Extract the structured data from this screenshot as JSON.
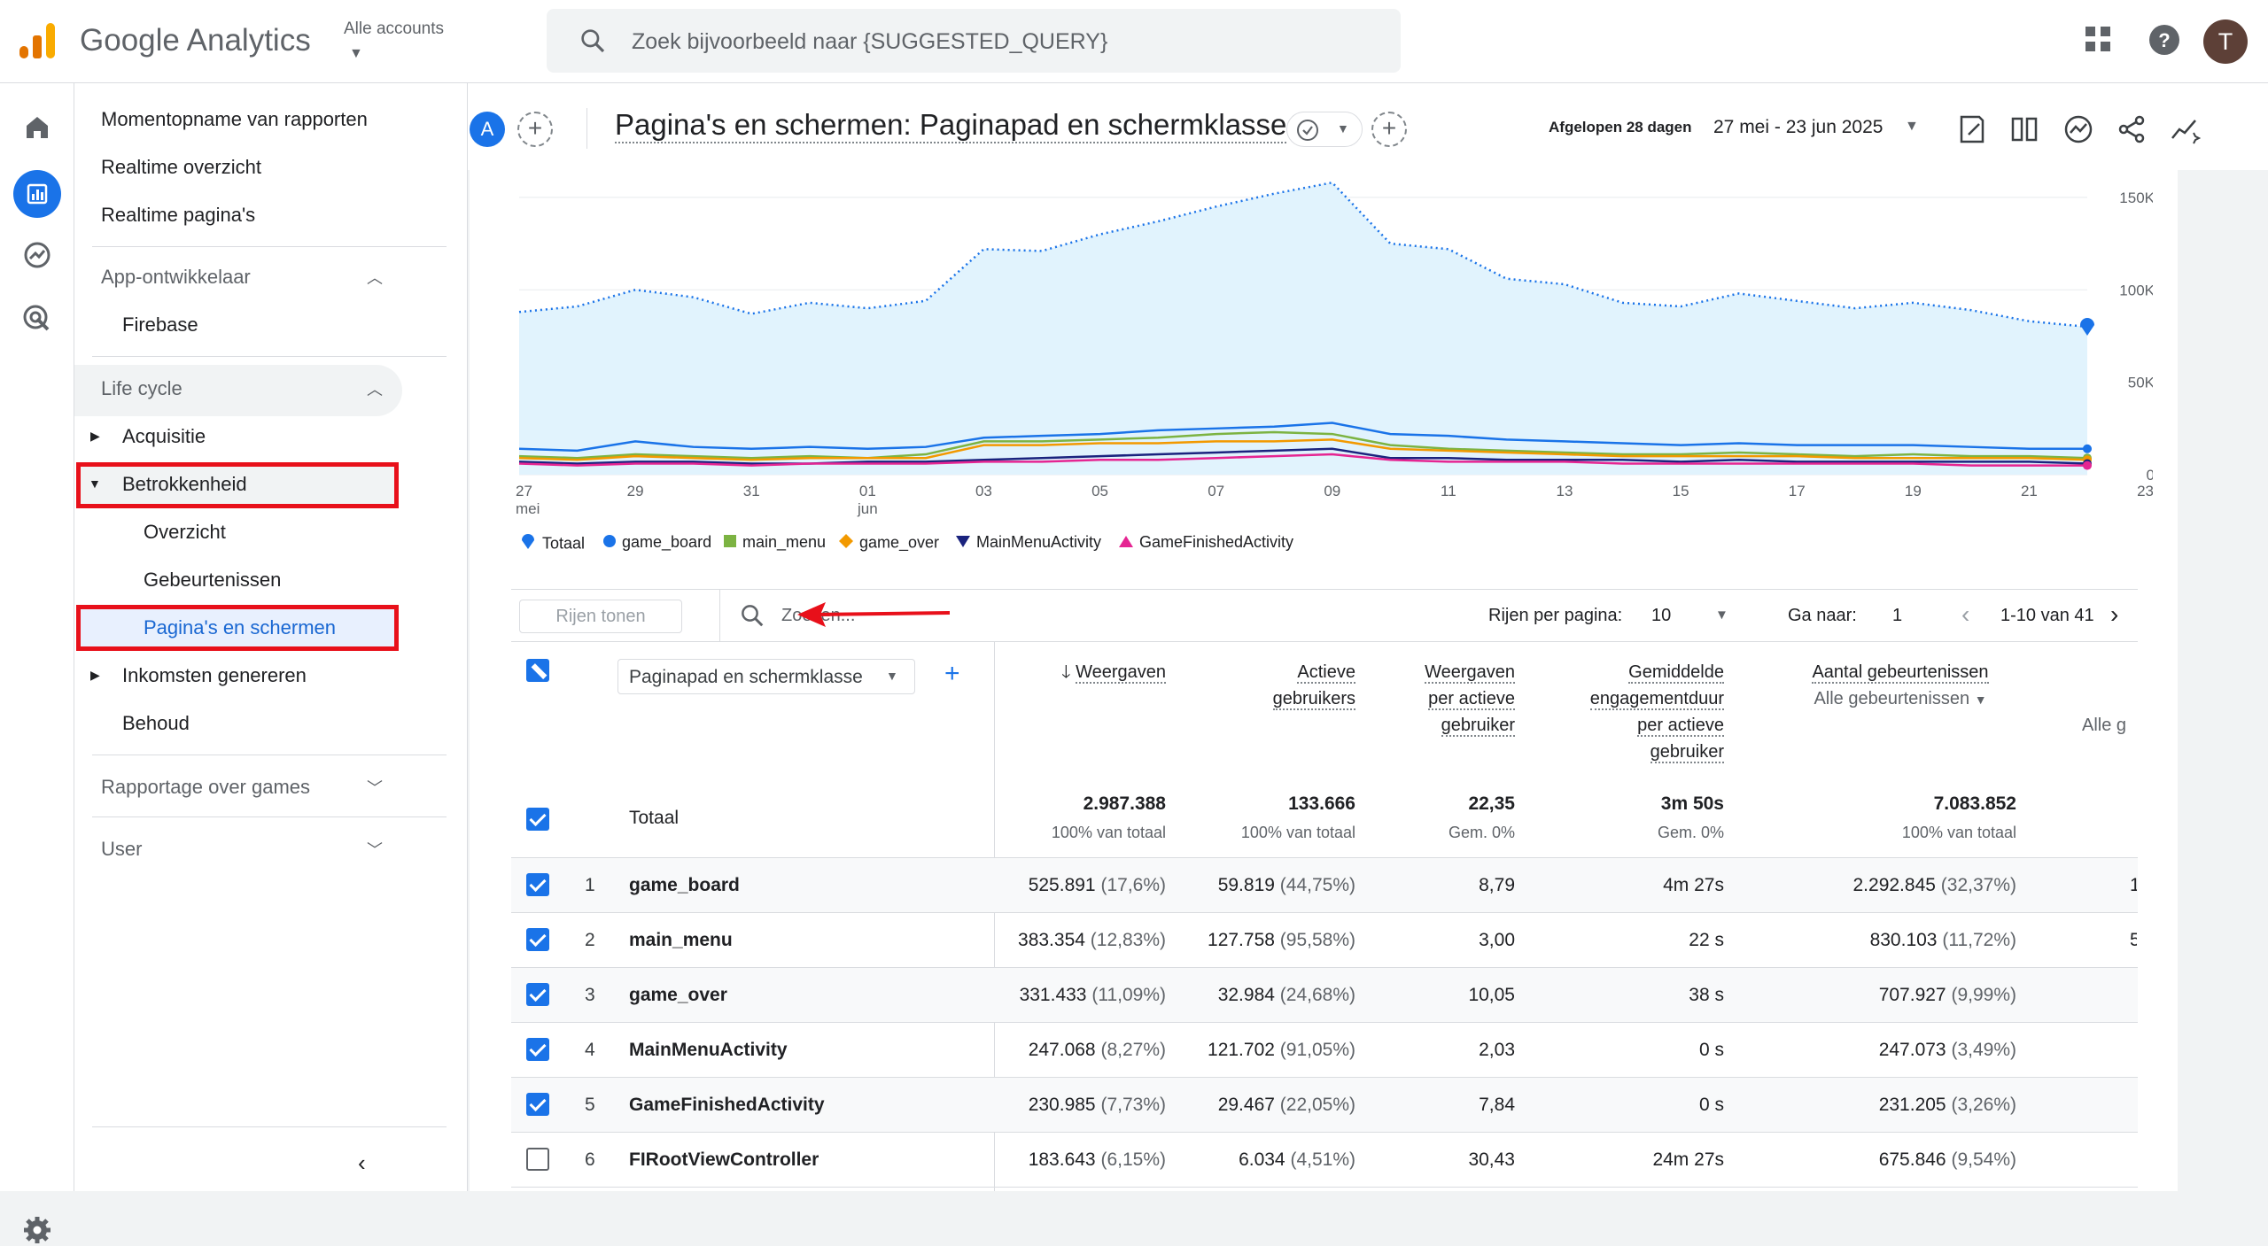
{
  "topbar": {
    "app_name": "Google Analytics",
    "accounts_label": "Alle accounts",
    "search_placeholder": "Zoek bijvoorbeeld naar {SUGGESTED_QUERY}",
    "avatar_initial": "T"
  },
  "sidebar": {
    "items": [
      {
        "label": "Momentopname van rapporten"
      },
      {
        "label": "Realtime overzicht"
      },
      {
        "label": "Realtime pagina's"
      }
    ],
    "sections": {
      "app_dev": "App-ontwikkelaar",
      "firebase": "Firebase",
      "lifecycle": "Life cycle",
      "acquisitie": "Acquisitie",
      "betrokkenheid": "Betrokkenheid",
      "overzicht": "Overzicht",
      "gebeurtenissen": "Gebeurtenissen",
      "paginas": "Pagina's en schermen",
      "inkomsten": "Inkomsten genereren",
      "behoud": "Behoud",
      "games": "Rapportage over games",
      "user": "User"
    }
  },
  "header": {
    "badge": "A",
    "title": "Pagina's en schermen: Paginapad en schermklasse",
    "period_label": "Afgelopen 28 dagen",
    "period_value": "27 mei - 23 jun 2025"
  },
  "chart_data": {
    "type": "area",
    "x": [
      "27 mei",
      "28",
      "29",
      "30",
      "31",
      "01 jun",
      "02",
      "03",
      "04",
      "05",
      "06",
      "07",
      "08",
      "09",
      "10",
      "11",
      "12",
      "13",
      "14",
      "15",
      "16",
      "17",
      "18",
      "19",
      "20",
      "21",
      "22",
      "23"
    ],
    "x_tick_labels": [
      [
        "27",
        "mei"
      ],
      [
        "29",
        ""
      ],
      [
        "31",
        ""
      ],
      [
        "01",
        "jun"
      ],
      [
        "03",
        ""
      ],
      [
        "05",
        ""
      ],
      [
        "07",
        ""
      ],
      [
        "09",
        ""
      ],
      [
        "11",
        ""
      ],
      [
        "13",
        ""
      ],
      [
        "15",
        ""
      ],
      [
        "17",
        ""
      ],
      [
        "19",
        ""
      ],
      [
        "21",
        ""
      ],
      [
        "23",
        ""
      ]
    ],
    "y_tick_labels": [
      "150K",
      "100K",
      "50K",
      "0"
    ],
    "ylim": [
      0,
      160000
    ],
    "series": [
      {
        "name": "Totaal",
        "color": "#1a73e8",
        "values": [
          88000,
          91000,
          100000,
          96000,
          87000,
          93000,
          90000,
          94000,
          122000,
          121000,
          130000,
          137000,
          145000,
          152000,
          158000,
          125000,
          122000,
          106000,
          103000,
          93000,
          91000,
          98000,
          94000,
          90000,
          93000,
          89000,
          83000,
          80000
        ]
      },
      {
        "name": "game_board",
        "color": "#1a73e8",
        "values": [
          14000,
          13000,
          18000,
          15000,
          14000,
          15000,
          14000,
          15000,
          20000,
          21000,
          22000,
          24000,
          25000,
          26000,
          28000,
          22000,
          21000,
          19000,
          18000,
          17000,
          16000,
          17000,
          16000,
          16000,
          16000,
          15000,
          14000,
          14000
        ]
      },
      {
        "name": "main_menu",
        "color": "#7cb342",
        "values": [
          10000,
          9000,
          11000,
          10000,
          9000,
          10000,
          9000,
          11000,
          18000,
          18000,
          19000,
          20000,
          22000,
          23000,
          22000,
          16000,
          14000,
          13000,
          12000,
          11000,
          11000,
          12000,
          11000,
          10000,
          11000,
          10000,
          10000,
          9000
        ]
      },
      {
        "name": "game_over",
        "color": "#f29900",
        "values": [
          9000,
          8000,
          10000,
          9000,
          8000,
          9000,
          9000,
          9000,
          16000,
          16000,
          17000,
          17000,
          18000,
          18000,
          19000,
          14000,
          13000,
          12000,
          11000,
          10000,
          10000,
          10000,
          10000,
          9000,
          9000,
          9000,
          9000,
          8000
        ]
      },
      {
        "name": "MainMenuActivity",
        "color": "#1a237e",
        "values": [
          7000,
          6000,
          7000,
          7000,
          6000,
          6000,
          7000,
          7000,
          8000,
          9000,
          10000,
          11000,
          12000,
          13000,
          14000,
          9000,
          9000,
          8000,
          8000,
          8000,
          7000,
          8000,
          7000,
          7000,
          7000,
          7000,
          7000,
          6000
        ]
      },
      {
        "name": "GameFinishedActivity",
        "color": "#e52592",
        "values": [
          6000,
          5000,
          6000,
          6000,
          5000,
          6000,
          6000,
          6000,
          7000,
          7000,
          8000,
          8000,
          9000,
          10000,
          11000,
          8000,
          7000,
          7000,
          7000,
          6000,
          6000,
          6000,
          6000,
          6000,
          6000,
          5000,
          5000,
          5000
        ]
      }
    ]
  },
  "legend": [
    "Totaal",
    "game_board",
    "main_menu",
    "game_over",
    "MainMenuActivity",
    "GameFinishedActivity"
  ],
  "table_toolbar": {
    "rows_show": "Rijen tonen",
    "search_placeholder": "Zoeken...",
    "rows_per_page_label": "Rijen per pagina:",
    "rows_per_page_value": "10",
    "goto_label": "Ga naar:",
    "goto_value": "1",
    "range": "1-10 van 41"
  },
  "table": {
    "dimension_select": "Paginapad en schermklasse",
    "columns": {
      "views": "Weergaven",
      "active_1": "Actieve",
      "active_2": "gebruikers",
      "vpu_1": "Weergaven",
      "vpu_2": "per actieve",
      "vpu_3": "gebruiker",
      "eng_1": "Gemiddelde",
      "eng_2": "engagementduur",
      "eng_3": "per actieve",
      "eng_4": "gebruiker",
      "events_1": "Aantal gebeurtenissen",
      "events_2": "Alle gebeurtenissen",
      "cut_off": "Alle g"
    },
    "totals": {
      "label": "Totaal",
      "views": "2.987.388",
      "views_sub": "100% van totaal",
      "active": "133.666",
      "active_sub": "100% van totaal",
      "vpu": "22,35",
      "vpu_sub": "Gem. 0%",
      "eng": "3m 50s",
      "eng_sub": "Gem. 0%",
      "events": "7.083.852",
      "events_sub": "100% van totaal"
    },
    "rows": [
      {
        "rank": "1",
        "name": "game_board",
        "views": "525.891",
        "views_pct": "(17,6%)",
        "active": "59.819",
        "active_pct": "(44,75%)",
        "vpu": "8,79",
        "eng": "4m 27s",
        "events": "2.292.845",
        "events_pct": "(32,37%)",
        "cut": "1"
      },
      {
        "rank": "2",
        "name": "main_menu",
        "views": "383.354",
        "views_pct": "(12,83%)",
        "active": "127.758",
        "active_pct": "(95,58%)",
        "vpu": "3,00",
        "eng": "22 s",
        "events": "830.103",
        "events_pct": "(11,72%)",
        "cut": "5"
      },
      {
        "rank": "3",
        "name": "game_over",
        "views": "331.433",
        "views_pct": "(11,09%)",
        "active": "32.984",
        "active_pct": "(24,68%)",
        "vpu": "10,05",
        "eng": "38 s",
        "events": "707.927",
        "events_pct": "(9,99%)",
        "cut": ""
      },
      {
        "rank": "4",
        "name": "MainMenuActivity",
        "views": "247.068",
        "views_pct": "(8,27%)",
        "active": "121.702",
        "active_pct": "(91,05%)",
        "vpu": "2,03",
        "eng": "0 s",
        "events": "247.073",
        "events_pct": "(3,49%)",
        "cut": ""
      },
      {
        "rank": "5",
        "name": "GameFinishedActivity",
        "views": "230.985",
        "views_pct": "(7,73%)",
        "active": "29.467",
        "active_pct": "(22,05%)",
        "vpu": "7,84",
        "eng": "0 s",
        "events": "231.205",
        "events_pct": "(3,26%)",
        "cut": ""
      },
      {
        "rank": "6",
        "name": "FIRootViewController",
        "views": "183.643",
        "views_pct": "(6,15%)",
        "active": "6.034",
        "active_pct": "(4,51%)",
        "vpu": "30,43",
        "eng": "24m 27s",
        "events": "675.846",
        "events_pct": "(9,54%)",
        "cut": ""
      }
    ]
  },
  "colors": {
    "accent": "#1a73e8",
    "highlight_border": "#e8101a",
    "annotation_arrow": "#e8101a"
  }
}
